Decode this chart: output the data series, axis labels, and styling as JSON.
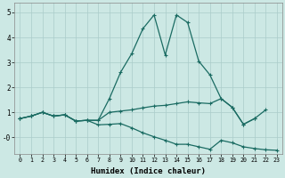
{
  "xlabel": "Humidex (Indice chaleur)",
  "bg_color": "#cce8e4",
  "grid_color": "#aaccca",
  "line_color": "#1a6b62",
  "xlim": [
    -0.5,
    23.5
  ],
  "ylim": [
    -0.65,
    5.4
  ],
  "xticks": [
    0,
    1,
    2,
    3,
    4,
    5,
    6,
    7,
    8,
    9,
    10,
    11,
    12,
    13,
    14,
    15,
    16,
    17,
    18,
    19,
    20,
    21,
    22,
    23
  ],
  "yticks": [
    0,
    1,
    2,
    3,
    4,
    5
  ],
  "ytick_labels": [
    "-0",
    "1",
    "2",
    "3",
    "4",
    "5"
  ],
  "line1_x": [
    0,
    1,
    2,
    3,
    4,
    5,
    6,
    7,
    8,
    9,
    10,
    11,
    12,
    13,
    14,
    15,
    16,
    17,
    18,
    19,
    20,
    21,
    22
  ],
  "line1_y": [
    0.75,
    0.85,
    1.0,
    0.85,
    0.9,
    0.65,
    0.68,
    0.68,
    1.55,
    2.6,
    3.35,
    4.35,
    4.9,
    3.3,
    4.9,
    4.6,
    3.05,
    2.5,
    1.55,
    1.2,
    0.52,
    0.75,
    1.1
  ],
  "line2_x": [
    0,
    1,
    2,
    3,
    4,
    5,
    6,
    7,
    8,
    9,
    10,
    11,
    12,
    13,
    14,
    15,
    16,
    17,
    18,
    19,
    20,
    21
  ],
  "line2_y": [
    0.75,
    0.85,
    1.0,
    0.85,
    0.9,
    0.65,
    0.68,
    0.68,
    1.0,
    1.05,
    1.1,
    1.18,
    1.25,
    1.28,
    1.35,
    1.42,
    1.38,
    1.35,
    1.55,
    1.2,
    0.52,
    0.75
  ],
  "line3_x": [
    0,
    1,
    2,
    3,
    4,
    5,
    6,
    7,
    8,
    9,
    10,
    11,
    12,
    13,
    14,
    15,
    16,
    17,
    18,
    19,
    20,
    21,
    22,
    23
  ],
  "line3_y": [
    0.75,
    0.85,
    1.0,
    0.85,
    0.9,
    0.65,
    0.68,
    0.5,
    0.52,
    0.55,
    0.38,
    0.18,
    0.02,
    -0.12,
    -0.28,
    -0.28,
    -0.38,
    -0.48,
    -0.12,
    -0.22,
    -0.38,
    -0.45,
    -0.5,
    -0.52
  ]
}
